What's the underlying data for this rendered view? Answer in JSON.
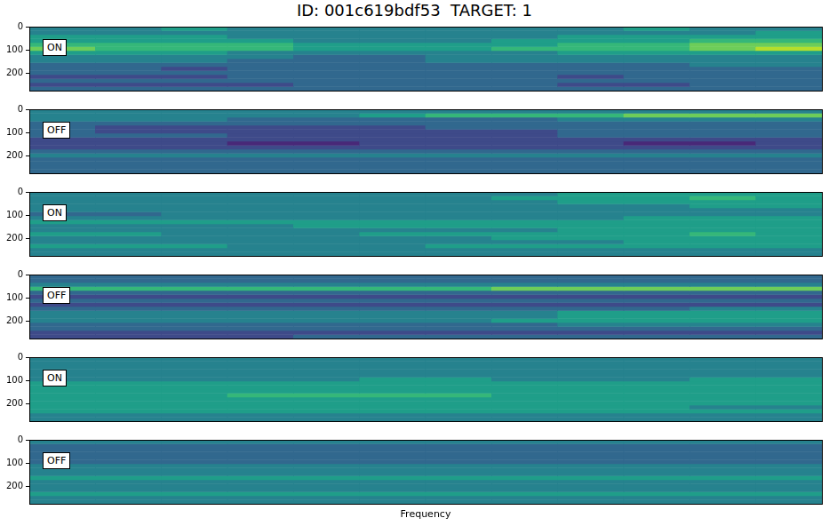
{
  "chart_data": [
    {
      "type": "heatmap",
      "title": "ID: 001c619bdf53  TARGET: 1",
      "annotation": "ON",
      "ylim": [
        0,
        273
      ],
      "yticks": [
        0,
        100,
        200
      ],
      "tick_labels": "y",
      "grid": false,
      "cell_range": [
        0,
        9
      ],
      "cells": [
        [
          4,
          4,
          5,
          4,
          4,
          4,
          4,
          4,
          4,
          5,
          4,
          4
        ],
        [
          4,
          4,
          4,
          4,
          4,
          4,
          4,
          4,
          4,
          4,
          4,
          5
        ],
        [
          5,
          5,
          5,
          4,
          4,
          4,
          4,
          4,
          5,
          5,
          5,
          5
        ],
        [
          5,
          5,
          5,
          5,
          4,
          4,
          4,
          5,
          5,
          5,
          6,
          6
        ],
        [
          6,
          6,
          6,
          6,
          5,
          5,
          5,
          5,
          6,
          6,
          7,
          7
        ],
        [
          7,
          6,
          6,
          6,
          5,
          5,
          5,
          6,
          6,
          6,
          7,
          8
        ],
        [
          5,
          5,
          5,
          4,
          4,
          4,
          4,
          4,
          5,
          5,
          5,
          5
        ],
        [
          4,
          4,
          4,
          4,
          3,
          3,
          4,
          4,
          4,
          4,
          4,
          4
        ],
        [
          4,
          4,
          4,
          3,
          3,
          3,
          4,
          4,
          4,
          4,
          4,
          4
        ],
        [
          3,
          3,
          3,
          3,
          3,
          3,
          3,
          3,
          3,
          3,
          4,
          4
        ],
        [
          3,
          3,
          2,
          3,
          3,
          3,
          3,
          3,
          3,
          3,
          3,
          3
        ],
        [
          3,
          3,
          3,
          3,
          3,
          3,
          3,
          3,
          3,
          3,
          3,
          3
        ],
        [
          2,
          2,
          2,
          3,
          3,
          3,
          3,
          3,
          2,
          3,
          3,
          3
        ],
        [
          3,
          3,
          3,
          3,
          3,
          3,
          3,
          3,
          3,
          3,
          3,
          3
        ],
        [
          2,
          2,
          2,
          2,
          3,
          3,
          3,
          3,
          2,
          2,
          3,
          3
        ],
        [
          3,
          3,
          3,
          3,
          3,
          3,
          3,
          3,
          3,
          3,
          3,
          3
        ]
      ]
    },
    {
      "type": "heatmap",
      "annotation": "OFF",
      "ylim": [
        0,
        273
      ],
      "yticks": [
        0,
        100,
        200
      ],
      "tick_labels": "y",
      "grid": false,
      "cell_range": [
        0,
        9
      ],
      "cells": [
        [
          4,
          4,
          4,
          4,
          4,
          4,
          4,
          4,
          4,
          4,
          4,
          4
        ],
        [
          4,
          4,
          4,
          4,
          4,
          5,
          6,
          6,
          6,
          7,
          7,
          7
        ],
        [
          4,
          4,
          4,
          3,
          3,
          3,
          3,
          3,
          4,
          4,
          4,
          4
        ],
        [
          3,
          3,
          3,
          3,
          3,
          3,
          3,
          3,
          3,
          3,
          3,
          3
        ],
        [
          3,
          2,
          2,
          2,
          2,
          2,
          3,
          3,
          3,
          3,
          3,
          3
        ],
        [
          3,
          2,
          2,
          2,
          2,
          2,
          2,
          2,
          3,
          3,
          3,
          3
        ],
        [
          3,
          3,
          3,
          2,
          2,
          2,
          2,
          2,
          3,
          3,
          3,
          3
        ],
        [
          2,
          2,
          2,
          2,
          2,
          2,
          2,
          2,
          2,
          2,
          2,
          2
        ],
        [
          2,
          2,
          2,
          1,
          1,
          2,
          2,
          2,
          2,
          1,
          1,
          2
        ],
        [
          2,
          2,
          2,
          2,
          2,
          2,
          2,
          2,
          2,
          2,
          2,
          2
        ],
        [
          3,
          3,
          3,
          3,
          3,
          3,
          3,
          3,
          3,
          3,
          3,
          3
        ],
        [
          4,
          4,
          4,
          4,
          4,
          4,
          4,
          4,
          4,
          4,
          4,
          4
        ],
        [
          3,
          3,
          3,
          3,
          3,
          3,
          3,
          3,
          3,
          3,
          3,
          3
        ],
        [
          3,
          3,
          3,
          3,
          3,
          3,
          3,
          3,
          3,
          3,
          3,
          3
        ],
        [
          3,
          3,
          3,
          3,
          3,
          3,
          3,
          3,
          3,
          3,
          3,
          3
        ],
        [
          3,
          3,
          3,
          3,
          3,
          3,
          3,
          3,
          3,
          3,
          3,
          3
        ]
      ]
    },
    {
      "type": "heatmap",
      "annotation": "ON",
      "ylim": [
        0,
        273
      ],
      "yticks": [
        0,
        100,
        200
      ],
      "tick_labels": "y",
      "grid": false,
      "cell_range": [
        0,
        9
      ],
      "cells": [
        [
          4,
          4,
          4,
          4,
          4,
          4,
          4,
          4,
          5,
          5,
          5,
          5
        ],
        [
          4,
          4,
          4,
          4,
          4,
          4,
          4,
          5,
          5,
          5,
          6,
          5
        ],
        [
          4,
          4,
          4,
          4,
          4,
          4,
          4,
          4,
          5,
          5,
          5,
          5
        ],
        [
          4,
          4,
          4,
          4,
          4,
          4,
          4,
          4,
          4,
          4,
          5,
          5
        ],
        [
          4,
          4,
          4,
          4,
          4,
          4,
          4,
          4,
          4,
          4,
          4,
          4
        ],
        [
          3,
          3,
          4,
          4,
          4,
          4,
          4,
          4,
          4,
          4,
          4,
          4
        ],
        [
          4,
          4,
          4,
          4,
          4,
          4,
          4,
          4,
          4,
          5,
          5,
          5
        ],
        [
          5,
          5,
          5,
          5,
          5,
          5,
          5,
          5,
          5,
          5,
          5,
          5
        ],
        [
          4,
          4,
          4,
          4,
          5,
          5,
          5,
          5,
          5,
          5,
          5,
          5
        ],
        [
          4,
          4,
          4,
          4,
          4,
          4,
          4,
          4,
          5,
          5,
          5,
          5
        ],
        [
          5,
          5,
          4,
          4,
          4,
          5,
          5,
          5,
          5,
          5,
          6,
          5
        ],
        [
          4,
          4,
          4,
          4,
          4,
          4,
          4,
          5,
          5,
          5,
          5,
          5
        ],
        [
          4,
          4,
          4,
          4,
          4,
          4,
          4,
          4,
          4,
          5,
          5,
          5
        ],
        [
          5,
          5,
          5,
          4,
          4,
          4,
          5,
          5,
          5,
          5,
          5,
          5
        ],
        [
          4,
          4,
          4,
          4,
          4,
          4,
          4,
          4,
          4,
          4,
          4,
          4
        ],
        [
          4,
          4,
          4,
          4,
          4,
          4,
          4,
          4,
          4,
          4,
          4,
          4
        ]
      ]
    },
    {
      "type": "heatmap",
      "annotation": "OFF",
      "ylim": [
        0,
        273
      ],
      "yticks": [
        0,
        100,
        200
      ],
      "tick_labels": "y",
      "grid": false,
      "cell_range": [
        0,
        9
      ],
      "cells": [
        [
          3,
          3,
          3,
          3,
          3,
          3,
          3,
          3,
          3,
          3,
          3,
          3
        ],
        [
          3,
          3,
          3,
          3,
          3,
          3,
          3,
          3,
          3,
          3,
          3,
          3
        ],
        [
          4,
          4,
          4,
          4,
          4,
          4,
          4,
          4,
          4,
          4,
          4,
          4
        ],
        [
          6,
          6,
          6,
          6,
          6,
          6,
          6,
          7,
          7,
          7,
          7,
          7
        ],
        [
          3,
          3,
          3,
          3,
          3,
          3,
          3,
          3,
          3,
          3,
          3,
          3
        ],
        [
          2,
          2,
          2,
          2,
          2,
          2,
          2,
          2,
          2,
          2,
          2,
          2
        ],
        [
          3,
          3,
          3,
          3,
          3,
          3,
          3,
          3,
          3,
          3,
          3,
          3
        ],
        [
          2,
          2,
          2,
          2,
          2,
          2,
          2,
          2,
          2,
          2,
          2,
          2
        ],
        [
          3,
          3,
          3,
          3,
          3,
          3,
          3,
          3,
          3,
          3,
          4,
          4
        ],
        [
          4,
          4,
          4,
          4,
          4,
          4,
          4,
          4,
          5,
          5,
          5,
          5
        ],
        [
          4,
          4,
          4,
          4,
          4,
          4,
          4,
          4,
          5,
          5,
          5,
          5
        ],
        [
          4,
          4,
          4,
          4,
          4,
          4,
          4,
          5,
          5,
          5,
          5,
          5
        ],
        [
          3,
          3,
          3,
          3,
          3,
          3,
          3,
          3,
          4,
          4,
          4,
          4
        ],
        [
          3,
          3,
          3,
          3,
          3,
          3,
          3,
          3,
          3,
          3,
          3,
          3
        ],
        [
          2,
          2,
          2,
          2,
          2,
          2,
          2,
          2,
          2,
          2,
          2,
          2
        ],
        [
          2,
          2,
          2,
          2,
          3,
          3,
          3,
          3,
          3,
          3,
          3,
          3
        ]
      ]
    },
    {
      "type": "heatmap",
      "annotation": "ON",
      "ylim": [
        0,
        273
      ],
      "yticks": [
        0,
        100,
        200
      ],
      "tick_labels": "y",
      "grid": false,
      "cell_range": [
        0,
        9
      ],
      "cells": [
        [
          4,
          4,
          4,
          4,
          4,
          4,
          4,
          4,
          4,
          4,
          4,
          4
        ],
        [
          4,
          4,
          4,
          4,
          4,
          4,
          4,
          4,
          4,
          4,
          4,
          4
        ],
        [
          4,
          4,
          4,
          4,
          4,
          4,
          4,
          4,
          4,
          4,
          4,
          4
        ],
        [
          4,
          4,
          4,
          4,
          4,
          4,
          4,
          4,
          4,
          4,
          4,
          4
        ],
        [
          4,
          4,
          4,
          4,
          4,
          4,
          4,
          4,
          4,
          4,
          4,
          4
        ],
        [
          4,
          4,
          4,
          4,
          4,
          5,
          5,
          4,
          4,
          4,
          5,
          5
        ],
        [
          5,
          5,
          5,
          5,
          5,
          5,
          5,
          5,
          5,
          5,
          5,
          5
        ],
        [
          5,
          5,
          5,
          5,
          5,
          5,
          5,
          5,
          5,
          5,
          5,
          5
        ],
        [
          5,
          5,
          5,
          5,
          5,
          5,
          5,
          5,
          5,
          5,
          5,
          5
        ],
        [
          5,
          5,
          5,
          6,
          6,
          6,
          6,
          5,
          5,
          5,
          5,
          5
        ],
        [
          5,
          5,
          5,
          5,
          5,
          5,
          5,
          5,
          5,
          5,
          5,
          5
        ],
        [
          5,
          5,
          5,
          5,
          5,
          5,
          5,
          5,
          5,
          5,
          5,
          5
        ],
        [
          5,
          5,
          5,
          5,
          5,
          5,
          5,
          5,
          5,
          5,
          4,
          4
        ],
        [
          5,
          5,
          5,
          5,
          5,
          5,
          5,
          5,
          5,
          5,
          5,
          5
        ],
        [
          4,
          4,
          4,
          4,
          4,
          4,
          4,
          4,
          4,
          4,
          4,
          4
        ],
        [
          4,
          4,
          4,
          4,
          4,
          4,
          4,
          4,
          4,
          4,
          4,
          4
        ]
      ]
    },
    {
      "type": "heatmap",
      "annotation": "OFF",
      "xlabel": "Frequency",
      "ylim": [
        0,
        273
      ],
      "yticks": [
        0,
        100,
        200
      ],
      "tick_labels": "y",
      "grid": false,
      "cell_range": [
        0,
        9
      ],
      "cells": [
        [
          4,
          4,
          4,
          4,
          4,
          4,
          4,
          4,
          4,
          4,
          4,
          4
        ],
        [
          3,
          3,
          3,
          3,
          3,
          3,
          3,
          3,
          3,
          3,
          3,
          3
        ],
        [
          3,
          3,
          3,
          3,
          3,
          3,
          3,
          3,
          3,
          3,
          3,
          3
        ],
        [
          3,
          3,
          3,
          3,
          3,
          3,
          3,
          3,
          3,
          3,
          3,
          3
        ],
        [
          3,
          3,
          3,
          3,
          3,
          3,
          3,
          3,
          3,
          3,
          3,
          3
        ],
        [
          3,
          3,
          3,
          3,
          3,
          3,
          3,
          3,
          3,
          3,
          3,
          3
        ],
        [
          4,
          4,
          4,
          4,
          4,
          4,
          4,
          4,
          4,
          4,
          4,
          4
        ],
        [
          4,
          4,
          4,
          4,
          4,
          4,
          4,
          4,
          4,
          4,
          4,
          4
        ],
        [
          4,
          4,
          4,
          4,
          4,
          4,
          4,
          4,
          4,
          4,
          4,
          4
        ],
        [
          5,
          5,
          5,
          5,
          5,
          5,
          5,
          5,
          5,
          5,
          5,
          5
        ],
        [
          4,
          4,
          4,
          4,
          4,
          4,
          4,
          4,
          4,
          4,
          4,
          4
        ],
        [
          4,
          4,
          4,
          4,
          4,
          4,
          4,
          4,
          4,
          4,
          4,
          4
        ],
        [
          4,
          4,
          4,
          4,
          4,
          4,
          4,
          4,
          4,
          4,
          4,
          4
        ],
        [
          5,
          5,
          5,
          5,
          5,
          5,
          5,
          5,
          5,
          5,
          5,
          5
        ],
        [
          4,
          4,
          4,
          4,
          4,
          4,
          4,
          4,
          4,
          4,
          4,
          4
        ],
        [
          4,
          4,
          4,
          4,
          4,
          4,
          4,
          4,
          4,
          4,
          4,
          4
        ]
      ]
    }
  ]
}
